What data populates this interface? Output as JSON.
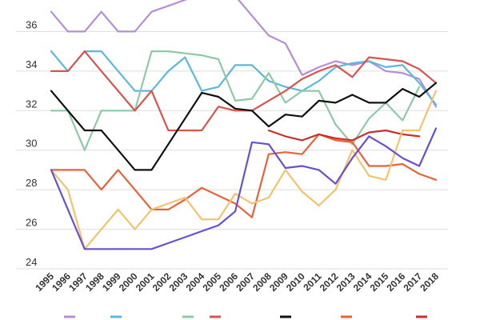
{
  "chart_data": {
    "type": "line",
    "title": "",
    "xlabel": "",
    "ylabel": "",
    "x": [
      "1995",
      "1996",
      "1997",
      "1998",
      "1999",
      "2000",
      "2001",
      "2002",
      "2003",
      "2004",
      "2005",
      "2006",
      "2007",
      "2008",
      "2009",
      "2010",
      "2011",
      "2012",
      "2013",
      "2014",
      "2015",
      "2016",
      "2017",
      "2018"
    ],
    "ylim": [
      24,
      38
    ],
    "yticks": [
      "24",
      "26",
      "28",
      "30",
      "32",
      "34",
      "36"
    ],
    "grid": true,
    "legend": "bottom",
    "series": [
      {
        "color": "#b48fd6",
        "values": [
          37.0,
          36.0,
          36.0,
          37.0,
          36.0,
          36.0,
          37.0,
          37.3,
          37.6,
          37.9,
          38.2,
          37.8,
          36.8,
          35.8,
          35.4,
          33.8,
          34.2,
          34.5,
          34.3,
          34.5,
          34.0,
          33.9,
          33.6,
          32.2
        ]
      },
      {
        "color": "#5bb8dc",
        "values": [
          35.0,
          34.0,
          35.0,
          35.0,
          34.0,
          33.0,
          33.0,
          34.0,
          34.7,
          33.0,
          33.2,
          34.3,
          34.3,
          33.5,
          33.2,
          33.0,
          33.5,
          34.2,
          34.4,
          34.5,
          34.2,
          34.3,
          33.4,
          32.3
        ]
      },
      {
        "color": "#8ec9a8",
        "values": [
          32.0,
          32.0,
          30.0,
          32.0,
          32.0,
          32.0,
          35.0,
          35.0,
          34.9,
          34.8,
          34.6,
          32.5,
          32.6,
          33.9,
          32.4,
          33.0,
          33.0,
          31.3,
          30.3,
          31.6,
          32.4,
          31.5,
          33.2,
          null
        ]
      },
      {
        "color": "#d9534f",
        "values": [
          34.0,
          34.0,
          35.0,
          34.0,
          33.0,
          32.0,
          33.0,
          31.0,
          31.0,
          31.0,
          32.2,
          32.0,
          32.0,
          32.5,
          33.0,
          33.6,
          34.0,
          34.3,
          33.7,
          34.7,
          34.6,
          34.5,
          34.1,
          33.4
        ]
      },
      {
        "color": "#111111",
        "values": [
          33.0,
          32.0,
          31.0,
          31.0,
          30.0,
          29.0,
          29.0,
          30.3,
          31.6,
          32.9,
          32.7,
          32.1,
          32.0,
          31.2,
          31.8,
          31.7,
          32.5,
          32.4,
          32.8,
          32.4,
          32.4,
          33.1,
          32.7,
          33.4
        ]
      },
      {
        "color": "#e8623a",
        "values": [
          29.0,
          29.0,
          29.0,
          28.0,
          29.0,
          28.0,
          27.0,
          27.0,
          27.5,
          28.1,
          27.7,
          27.3,
          26.6,
          29.8,
          29.9,
          29.8,
          30.8,
          30.5,
          30.4,
          29.2,
          29.2,
          29.3,
          28.8,
          28.5
        ]
      },
      {
        "color": "#c9302c",
        "values": [
          null,
          null,
          null,
          null,
          null,
          null,
          null,
          null,
          null,
          null,
          null,
          null,
          null,
          31.0,
          30.7,
          30.5,
          30.8,
          30.6,
          30.5,
          30.9,
          31.0,
          30.8,
          30.7,
          null
        ]
      },
      {
        "color": "#f2c36b",
        "values": [
          29.0,
          28.0,
          25.0,
          26.0,
          27.0,
          26.0,
          27.0,
          27.3,
          27.6,
          26.5,
          26.5,
          27.8,
          27.3,
          27.6,
          29.0,
          27.9,
          27.2,
          28.0,
          30.0,
          28.7,
          28.5,
          31.0,
          31.0,
          33.0
        ]
      },
      {
        "color": "#6a4fd1",
        "values": [
          29.0,
          27.0,
          25.0,
          25.0,
          25.0,
          25.0,
          25.0,
          25.3,
          25.6,
          25.9,
          26.2,
          26.9,
          30.4,
          30.3,
          29.1,
          29.2,
          29.0,
          28.3,
          29.6,
          30.7,
          30.2,
          29.6,
          29.2,
          31.1
        ]
      }
    ]
  }
}
